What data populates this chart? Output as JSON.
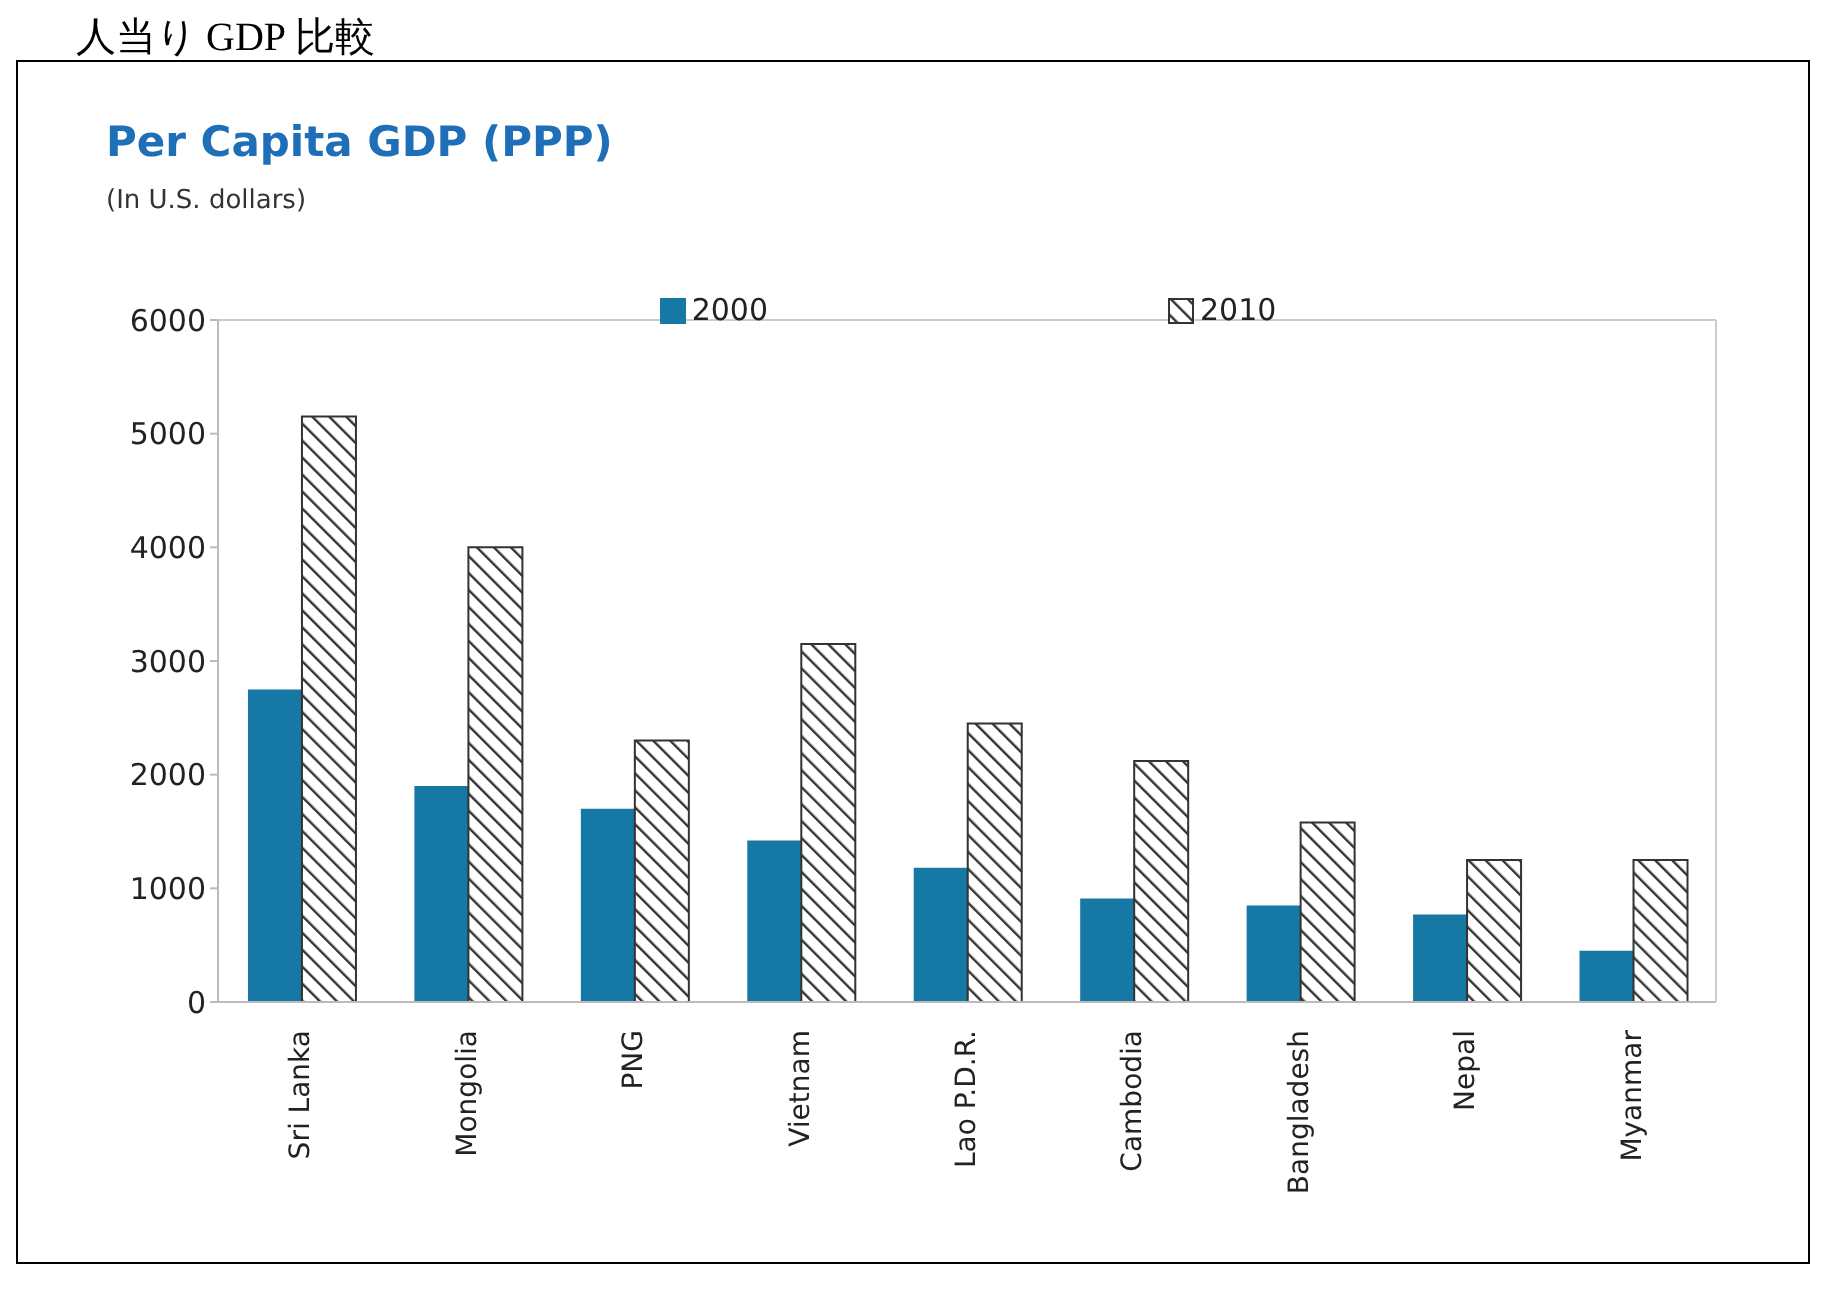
{
  "chart_data": {
    "type": "bar",
    "title": "Per Capita GDP (PPP)",
    "subtitle": "(In U.S. dollars)",
    "annotations": [
      "人当り GDP 比較"
    ],
    "categories": [
      "Sri Lanka",
      "Mongolia",
      "PNG",
      "Vietnam",
      "Lao P.D.R.",
      "Cambodia",
      "Bangladesh",
      "Nepal",
      "Myanmar"
    ],
    "series": [
      {
        "name": "2000",
        "color": "#1578a5",
        "values": [
          2750,
          1900,
          1700,
          1420,
          1180,
          910,
          850,
          770,
          450
        ]
      },
      {
        "name": "2010",
        "color": "#333333",
        "values": [
          5150,
          4000,
          2300,
          3150,
          2450,
          2120,
          1580,
          1250,
          1250
        ]
      }
    ],
    "ylim": [
      0,
      6000
    ],
    "yticks": [
      0,
      1000,
      2000,
      3000,
      4000,
      5000,
      6000
    ],
    "legend": "top"
  }
}
